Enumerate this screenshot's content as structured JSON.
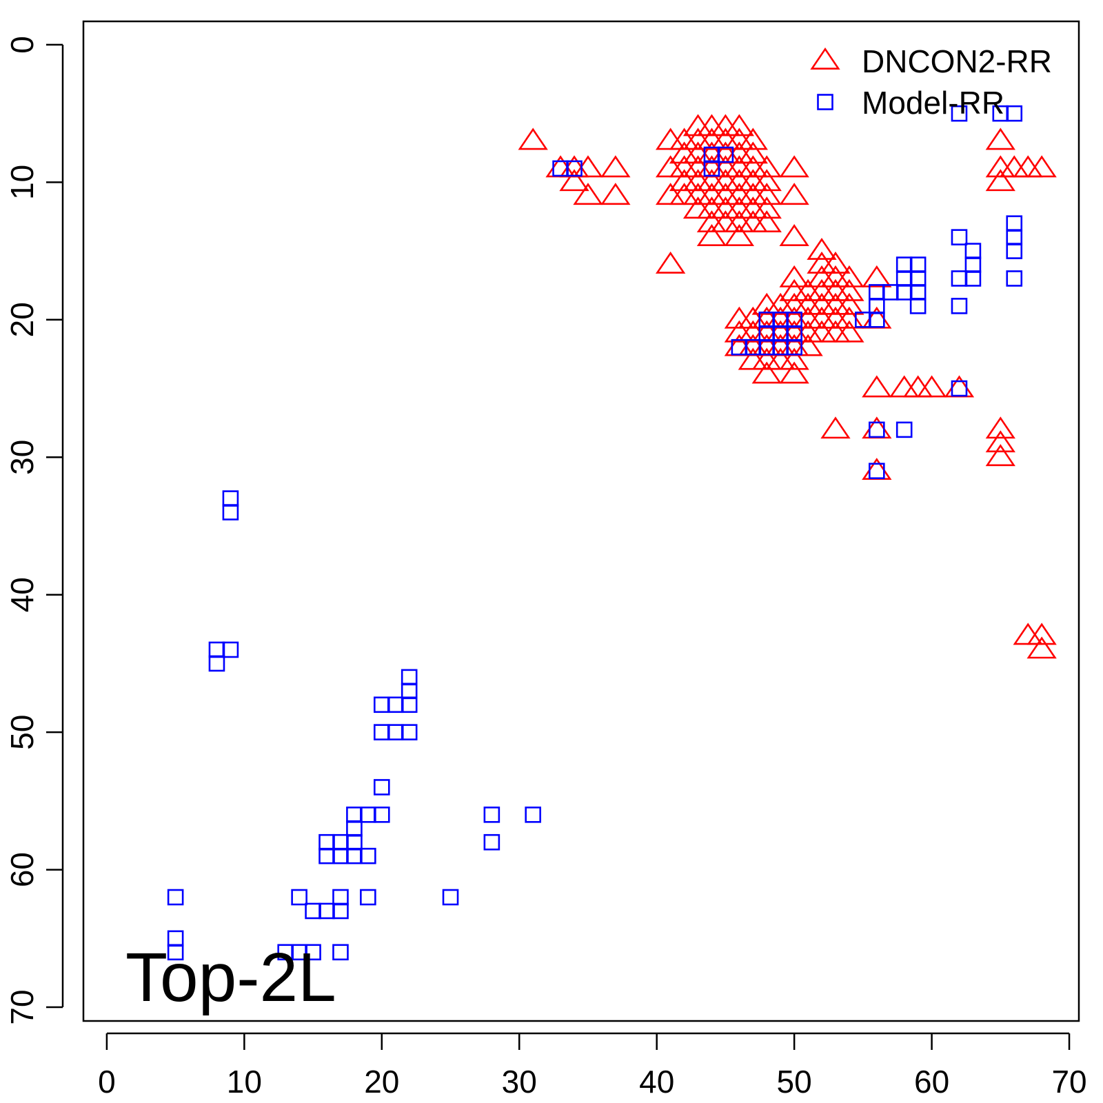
{
  "chart_data": {
    "type": "scatter",
    "title": "",
    "xlabel": "",
    "ylabel": "",
    "xlim": [
      -1.7,
      70.7
    ],
    "ylim": [
      71.0,
      -1.7
    ],
    "y_reversed": true,
    "grid": false,
    "xticks": [
      0,
      10,
      20,
      30,
      40,
      50,
      60,
      70
    ],
    "yticks": [
      0,
      10,
      20,
      30,
      40,
      50,
      60,
      70
    ],
    "annotation": "Top-2L",
    "legend": {
      "placement": "top-right"
    },
    "series": [
      {
        "name": "DNCON2-RR",
        "marker": "triangle",
        "color": "#ff0000",
        "points": [
          [
            31,
            7
          ],
          [
            33,
            9
          ],
          [
            34,
            9
          ],
          [
            34,
            10
          ],
          [
            35,
            9
          ],
          [
            35,
            11
          ],
          [
            37,
            9
          ],
          [
            37,
            11
          ],
          [
            41,
            16
          ],
          [
            41,
            7
          ],
          [
            41,
            9
          ],
          [
            41,
            11
          ],
          [
            42,
            7
          ],
          [
            42,
            8
          ],
          [
            42,
            9
          ],
          [
            42,
            10
          ],
          [
            42,
            11
          ],
          [
            43,
            6
          ],
          [
            43,
            7
          ],
          [
            43,
            8
          ],
          [
            43,
            9
          ],
          [
            43,
            10
          ],
          [
            43,
            11
          ],
          [
            43,
            12
          ],
          [
            44,
            6
          ],
          [
            44,
            7
          ],
          [
            44,
            8
          ],
          [
            44,
            9
          ],
          [
            44,
            10
          ],
          [
            44,
            11
          ],
          [
            44,
            12
          ],
          [
            44,
            13
          ],
          [
            44,
            14
          ],
          [
            45,
            6
          ],
          [
            45,
            7
          ],
          [
            45,
            8
          ],
          [
            45,
            9
          ],
          [
            45,
            10
          ],
          [
            45,
            11
          ],
          [
            45,
            12
          ],
          [
            45,
            13
          ],
          [
            46,
            6
          ],
          [
            46,
            7
          ],
          [
            46,
            8
          ],
          [
            46,
            9
          ],
          [
            46,
            10
          ],
          [
            46,
            11
          ],
          [
            46,
            12
          ],
          [
            46,
            13
          ],
          [
            46,
            14
          ],
          [
            47,
            7
          ],
          [
            47,
            8
          ],
          [
            47,
            9
          ],
          [
            47,
            10
          ],
          [
            47,
            11
          ],
          [
            47,
            12
          ],
          [
            47,
            13
          ],
          [
            48,
            9
          ],
          [
            48,
            10
          ],
          [
            48,
            11
          ],
          [
            48,
            12
          ],
          [
            48,
            13
          ],
          [
            50,
            9
          ],
          [
            50,
            11
          ],
          [
            50,
            14
          ],
          [
            46,
            20
          ],
          [
            46,
            21
          ],
          [
            46,
            22
          ],
          [
            47,
            20
          ],
          [
            47,
            21
          ],
          [
            47,
            22
          ],
          [
            47,
            23
          ],
          [
            48,
            19
          ],
          [
            48,
            20
          ],
          [
            48,
            21
          ],
          [
            48,
            22
          ],
          [
            48,
            23
          ],
          [
            48,
            24
          ],
          [
            49,
            19
          ],
          [
            49,
            20
          ],
          [
            49,
            21
          ],
          [
            49,
            22
          ],
          [
            49,
            23
          ],
          [
            50,
            17
          ],
          [
            50,
            18
          ],
          [
            50,
            19
          ],
          [
            50,
            20
          ],
          [
            50,
            21
          ],
          [
            50,
            22
          ],
          [
            50,
            23
          ],
          [
            50,
            24
          ],
          [
            51,
            18
          ],
          [
            51,
            19
          ],
          [
            51,
            20
          ],
          [
            51,
            21
          ],
          [
            51,
            22
          ],
          [
            52,
            15
          ],
          [
            52,
            16
          ],
          [
            52,
            17
          ],
          [
            52,
            18
          ],
          [
            52,
            19
          ],
          [
            52,
            20
          ],
          [
            52,
            21
          ],
          [
            53,
            16
          ],
          [
            53,
            17
          ],
          [
            53,
            18
          ],
          [
            53,
            19
          ],
          [
            53,
            20
          ],
          [
            53,
            21
          ],
          [
            54,
            17
          ],
          [
            54,
            18
          ],
          [
            54,
            19
          ],
          [
            54,
            20
          ],
          [
            54,
            21
          ],
          [
            56,
            17
          ],
          [
            56,
            20
          ],
          [
            56,
            25
          ],
          [
            56,
            28
          ],
          [
            56,
            31
          ],
          [
            53,
            28
          ],
          [
            58,
            25
          ],
          [
            59,
            25
          ],
          [
            60,
            25
          ],
          [
            62,
            25
          ],
          [
            65,
            7
          ],
          [
            65,
            9
          ],
          [
            65,
            10
          ],
          [
            66,
            9
          ],
          [
            67,
            9
          ],
          [
            68,
            9
          ],
          [
            65,
            28
          ],
          [
            65,
            29
          ],
          [
            65,
            30
          ],
          [
            67,
            43
          ],
          [
            68,
            43
          ],
          [
            68,
            44
          ]
        ]
      },
      {
        "name": "Model-RR",
        "marker": "square",
        "color": "#0000ff",
        "points": [
          [
            33,
            9
          ],
          [
            34,
            9
          ],
          [
            44,
            8
          ],
          [
            45,
            8
          ],
          [
            44,
            9
          ],
          [
            62,
            5
          ],
          [
            65,
            5
          ],
          [
            66,
            5
          ],
          [
            66,
            13
          ],
          [
            66,
            14
          ],
          [
            66,
            15
          ],
          [
            66,
            17
          ],
          [
            62,
            14
          ],
          [
            63,
            15
          ],
          [
            63,
            16
          ],
          [
            63,
            17
          ],
          [
            62,
            17
          ],
          [
            62,
            19
          ],
          [
            58,
            16
          ],
          [
            59,
            16
          ],
          [
            58,
            17
          ],
          [
            59,
            17
          ],
          [
            57,
            18
          ],
          [
            58,
            18
          ],
          [
            59,
            18
          ],
          [
            59,
            19
          ],
          [
            56,
            18
          ],
          [
            56,
            19
          ],
          [
            56,
            20
          ],
          [
            55,
            20
          ],
          [
            48,
            20
          ],
          [
            49,
            20
          ],
          [
            50,
            20
          ],
          [
            48,
            21
          ],
          [
            49,
            21
          ],
          [
            50,
            21
          ],
          [
            46,
            22
          ],
          [
            47,
            22
          ],
          [
            48,
            22
          ],
          [
            49,
            22
          ],
          [
            50,
            22
          ],
          [
            62,
            25
          ],
          [
            56,
            28
          ],
          [
            58,
            28
          ],
          [
            56,
            31
          ],
          [
            9,
            33
          ],
          [
            9,
            34
          ],
          [
            8,
            44
          ],
          [
            9,
            44
          ],
          [
            8,
            45
          ],
          [
            22,
            46
          ],
          [
            22,
            47
          ],
          [
            20,
            48
          ],
          [
            21,
            48
          ],
          [
            22,
            48
          ],
          [
            20,
            50
          ],
          [
            21,
            50
          ],
          [
            22,
            50
          ],
          [
            20,
            54
          ],
          [
            18,
            56
          ],
          [
            19,
            56
          ],
          [
            20,
            56
          ],
          [
            28,
            56
          ],
          [
            31,
            56
          ],
          [
            18,
            57
          ],
          [
            16,
            58
          ],
          [
            17,
            58
          ],
          [
            18,
            58
          ],
          [
            28,
            58
          ],
          [
            16,
            59
          ],
          [
            17,
            59
          ],
          [
            18,
            59
          ],
          [
            19,
            59
          ],
          [
            5,
            62
          ],
          [
            14,
            62
          ],
          [
            17,
            62
          ],
          [
            19,
            62
          ],
          [
            25,
            62
          ],
          [
            15,
            63
          ],
          [
            16,
            63
          ],
          [
            17,
            63
          ],
          [
            5,
            65
          ],
          [
            5,
            66
          ],
          [
            13,
            66
          ],
          [
            14,
            66
          ],
          [
            15,
            66
          ],
          [
            17,
            66
          ]
        ]
      }
    ]
  }
}
